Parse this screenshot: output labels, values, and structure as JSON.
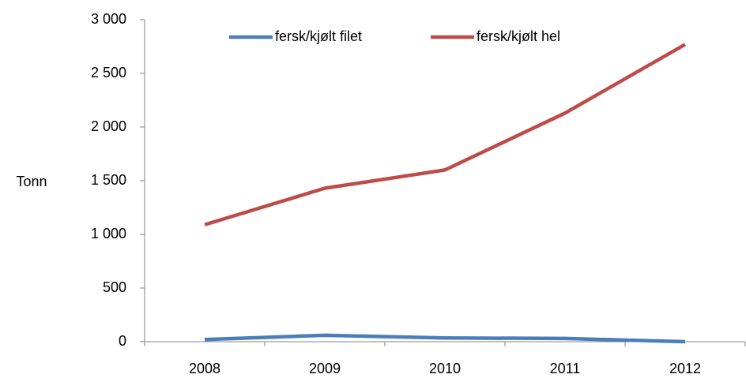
{
  "chart_data": {
    "type": "line",
    "y_label": "Tonn",
    "categories": [
      "2008",
      "2009",
      "2010",
      "2011",
      "2012"
    ],
    "series": [
      {
        "name": "fersk/kjølt filet",
        "color": "#4a7ebb",
        "values": [
          20,
          60,
          35,
          30,
          0
        ]
      },
      {
        "name": "fersk/kjølt hel",
        "color": "#be4b48",
        "values": [
          1090,
          1430,
          1600,
          2130,
          2770
        ]
      }
    ],
    "ylim": [
      0,
      3000
    ],
    "yticks": [
      0,
      500,
      {
        "value": 1000,
        "label": "1 000"
      },
      {
        "value": 1500,
        "label": "1 500"
      },
      {
        "value": 2000,
        "label": "2 000"
      },
      {
        "value": 2500,
        "label": "2 500"
      },
      {
        "value": 3000,
        "label": "3 000"
      }
    ],
    "legend": "top"
  }
}
